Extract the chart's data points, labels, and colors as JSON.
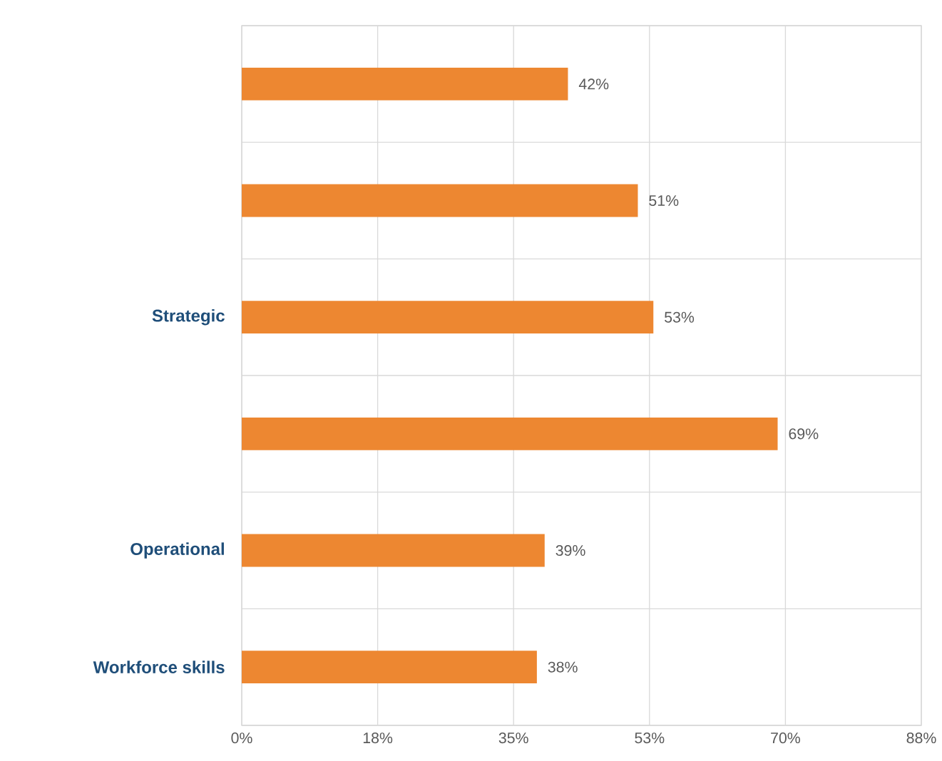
{
  "chart_data": {
    "type": "bar",
    "orientation": "horizontal",
    "categories": [
      null,
      null,
      "Strategic",
      null,
      "Operational",
      "Workforce skills"
    ],
    "values": [
      42,
      51,
      53,
      69,
      39,
      38
    ],
    "value_labels": [
      "42%",
      "51%",
      "53%",
      "69%",
      "39%",
      "38%"
    ],
    "color": "#ed8731",
    "xlim": [
      0,
      87.5
    ],
    "xticks": [
      {
        "value": 0,
        "label": "0%"
      },
      {
        "value": 17.5,
        "label": "18%"
      },
      {
        "value": 35,
        "label": "35%"
      },
      {
        "value": 52.5,
        "label": "53%"
      },
      {
        "value": 70,
        "label": "70%"
      },
      {
        "value": 87.5,
        "label": "88%"
      }
    ],
    "grid": true
  }
}
